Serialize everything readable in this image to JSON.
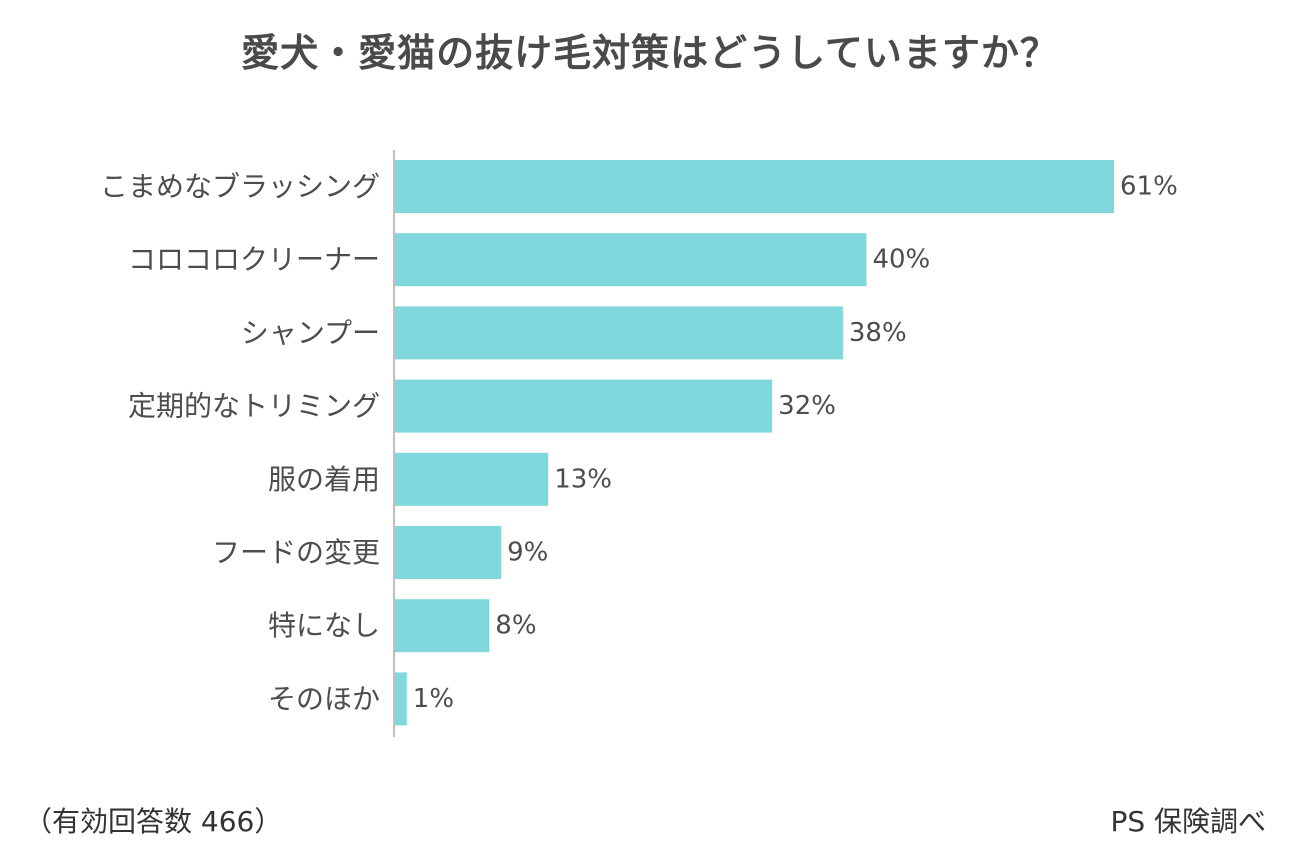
{
  "chart_data": {
    "type": "bar",
    "orientation": "horizontal",
    "title": "愛犬・愛猫の抜け毛対策はどうしていますか？",
    "categories": [
      "こまめなブラッシング",
      "コロコロクリーナー",
      "シャンプー",
      "定期的なトリミング",
      "服の着用",
      "フードの変更",
      "特になし",
      "そのほか"
    ],
    "values": [
      61,
      40,
      38,
      32,
      13,
      9,
      8,
      1
    ],
    "value_labels": [
      "61%",
      "40%",
      "38%",
      "32%",
      "13%",
      "9%",
      "8%",
      "1%"
    ],
    "xlim": [
      0,
      61
    ],
    "grid": false,
    "bar_color": "#80d8dc",
    "axis_color": "#bfbfbf"
  },
  "notes": {
    "sample": "（有効回答数 466）",
    "source": "PS 保険調べ"
  }
}
